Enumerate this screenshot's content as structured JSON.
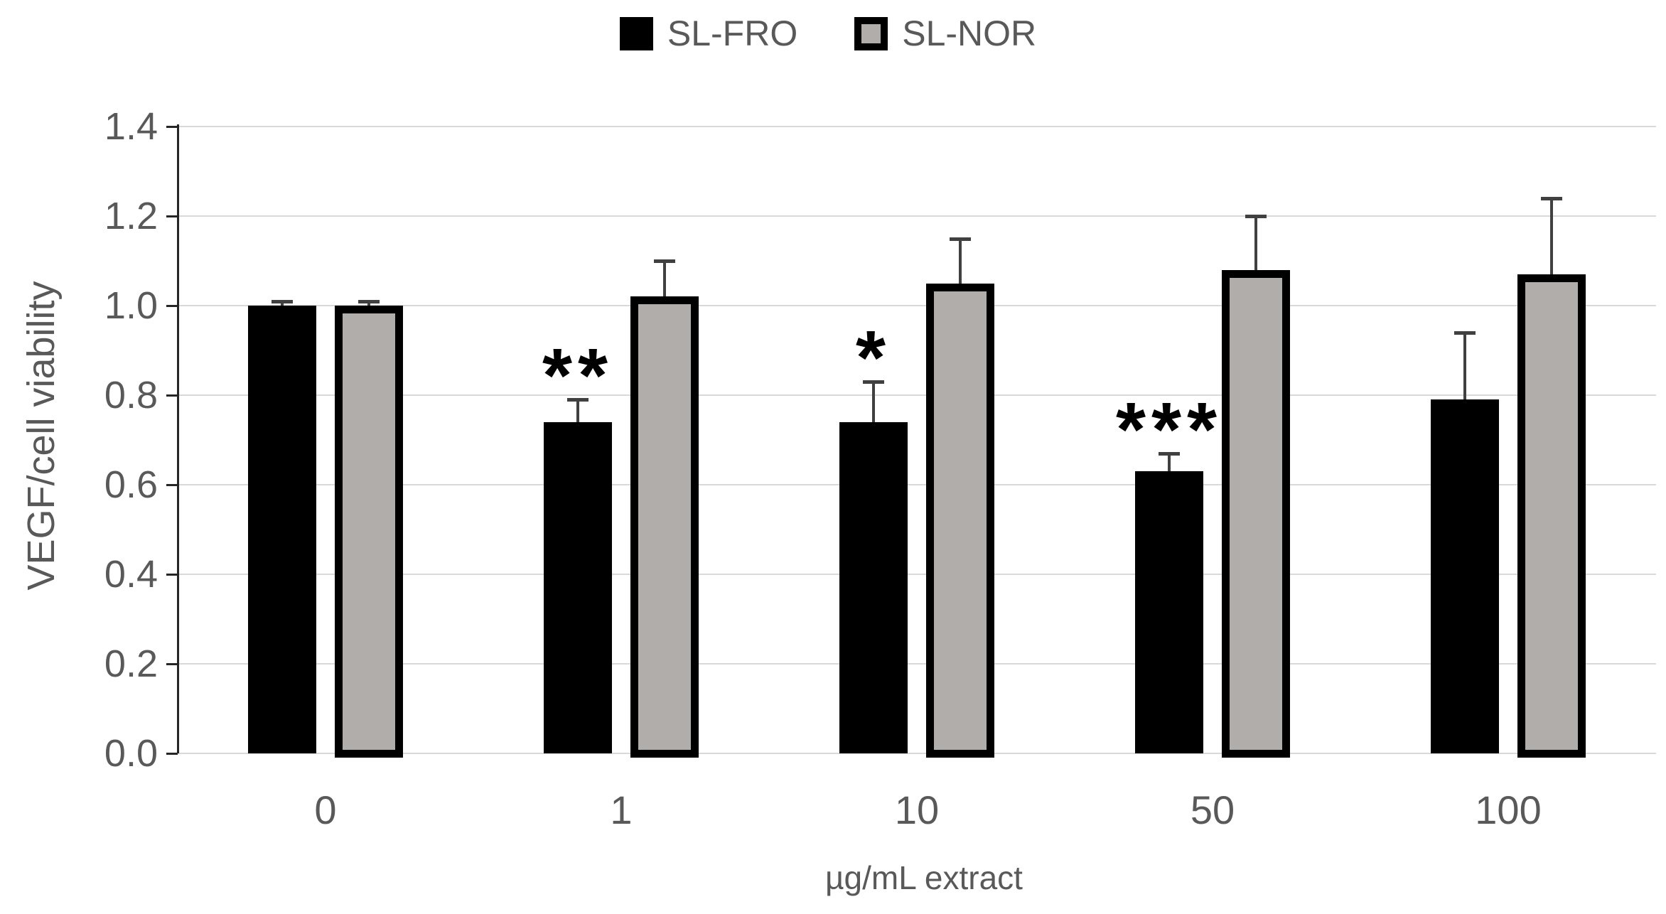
{
  "chart_data": {
    "type": "bar",
    "title": "",
    "categories": [
      "0",
      "1",
      "10",
      "50",
      "100"
    ],
    "series": [
      {
        "name": "SL-FRO",
        "fill": "#000000",
        "border": "#000000",
        "values": [
          1.0,
          0.74,
          0.74,
          0.63,
          0.79
        ],
        "errors_plus": [
          0.01,
          0.05,
          0.09,
          0.04,
          0.15
        ],
        "significance": [
          "",
          "**",
          "*",
          "***",
          ""
        ]
      },
      {
        "name": "SL-NOR",
        "fill": "#b0adab",
        "border": "#000000",
        "values": [
          1.0,
          1.02,
          1.05,
          1.08,
          1.07
        ],
        "errors_plus": [
          0.01,
          0.08,
          0.1,
          0.12,
          0.17
        ],
        "significance": [
          "",
          "",
          "",
          "",
          ""
        ]
      }
    ],
    "xlabel": "µg/mL extract",
    "ylabel": "VEGF/cell viability",
    "ylim": [
      0.0,
      1.4
    ],
    "ytick_step": 0.2,
    "ytick_labels": [
      "0.0",
      "0.2",
      "0.4",
      "0.6",
      "0.8",
      "1.0",
      "1.2",
      "1.4"
    ],
    "legend_position": "top",
    "grid": true
  },
  "colors": {
    "text": "#595959",
    "gridline": "#d9d9d9",
    "axis_line": "#262626",
    "error_bar": "#404040",
    "significance": "#000000",
    "background": "#ffffff"
  }
}
